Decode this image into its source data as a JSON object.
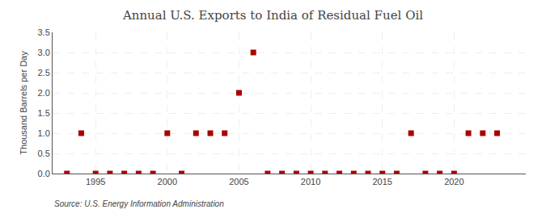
{
  "chart_data": {
    "type": "scatter",
    "title": "Annual U.S. Exports to India of Residual Fuel Oil",
    "ylabel": "Thousand Barrels per Day",
    "annotations": [
      "Source: U.S. Energy Information Administration"
    ],
    "x": [
      1993,
      1994,
      1995,
      1996,
      1997,
      1998,
      1999,
      2000,
      2001,
      2002,
      2003,
      2004,
      2005,
      2006,
      2007,
      2008,
      2009,
      2010,
      2011,
      2012,
      2013,
      2014,
      2015,
      2016,
      2017,
      2018,
      2019,
      2020,
      2021,
      2022,
      2023
    ],
    "values": [
      0,
      1,
      0,
      0,
      0,
      0,
      0,
      1,
      0,
      1,
      1,
      1,
      2,
      3,
      0,
      0,
      0,
      0,
      0,
      0,
      0,
      0,
      0,
      0,
      1,
      0,
      0,
      0,
      1,
      1,
      1
    ],
    "color": "#aa0000",
    "marker": "square",
    "xlim": [
      1992,
      2025
    ],
    "xticks": [
      1995,
      2000,
      2005,
      2010,
      2015,
      2020
    ],
    "ylim": [
      0,
      3.5
    ],
    "yticks": [
      {
        "value": 0.0,
        "label": "0.0"
      },
      0.5,
      {
        "value": 1.0,
        "label": "1.0"
      },
      1.5,
      {
        "value": 2.0,
        "label": "2.0"
      },
      2.5,
      {
        "value": 3.0,
        "label": "3.0"
      },
      3.5
    ],
    "grid": true
  }
}
